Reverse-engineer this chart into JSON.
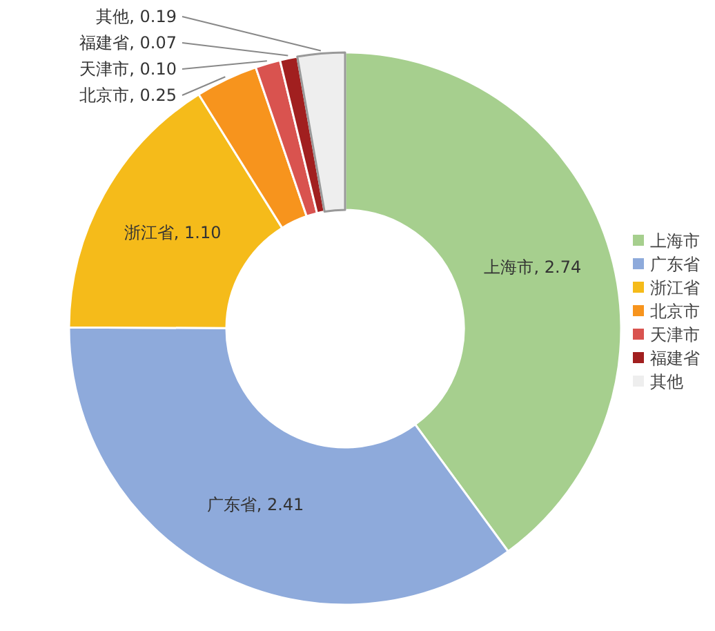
{
  "chart_data": {
    "type": "donut",
    "categories": [
      "上海市",
      "广东省",
      "浙江省",
      "北京市",
      "天津市",
      "福建省",
      "其他"
    ],
    "values": [
      2.74,
      2.41,
      1.1,
      0.25,
      0.1,
      0.07,
      0.19
    ],
    "value_labels": [
      "上海市, 2.74",
      "广东省, 2.41",
      "浙江省, 1.10",
      "北京市, 0.25",
      "天津市, 0.10",
      "福建省, 0.07",
      "其他, 0.19"
    ],
    "colors": [
      "#a6cf8e",
      "#8eaadb",
      "#f5bb1a",
      "#f7941d",
      "#d9534f",
      "#a11f1f",
      "#eeeeee"
    ],
    "legend": "right"
  }
}
